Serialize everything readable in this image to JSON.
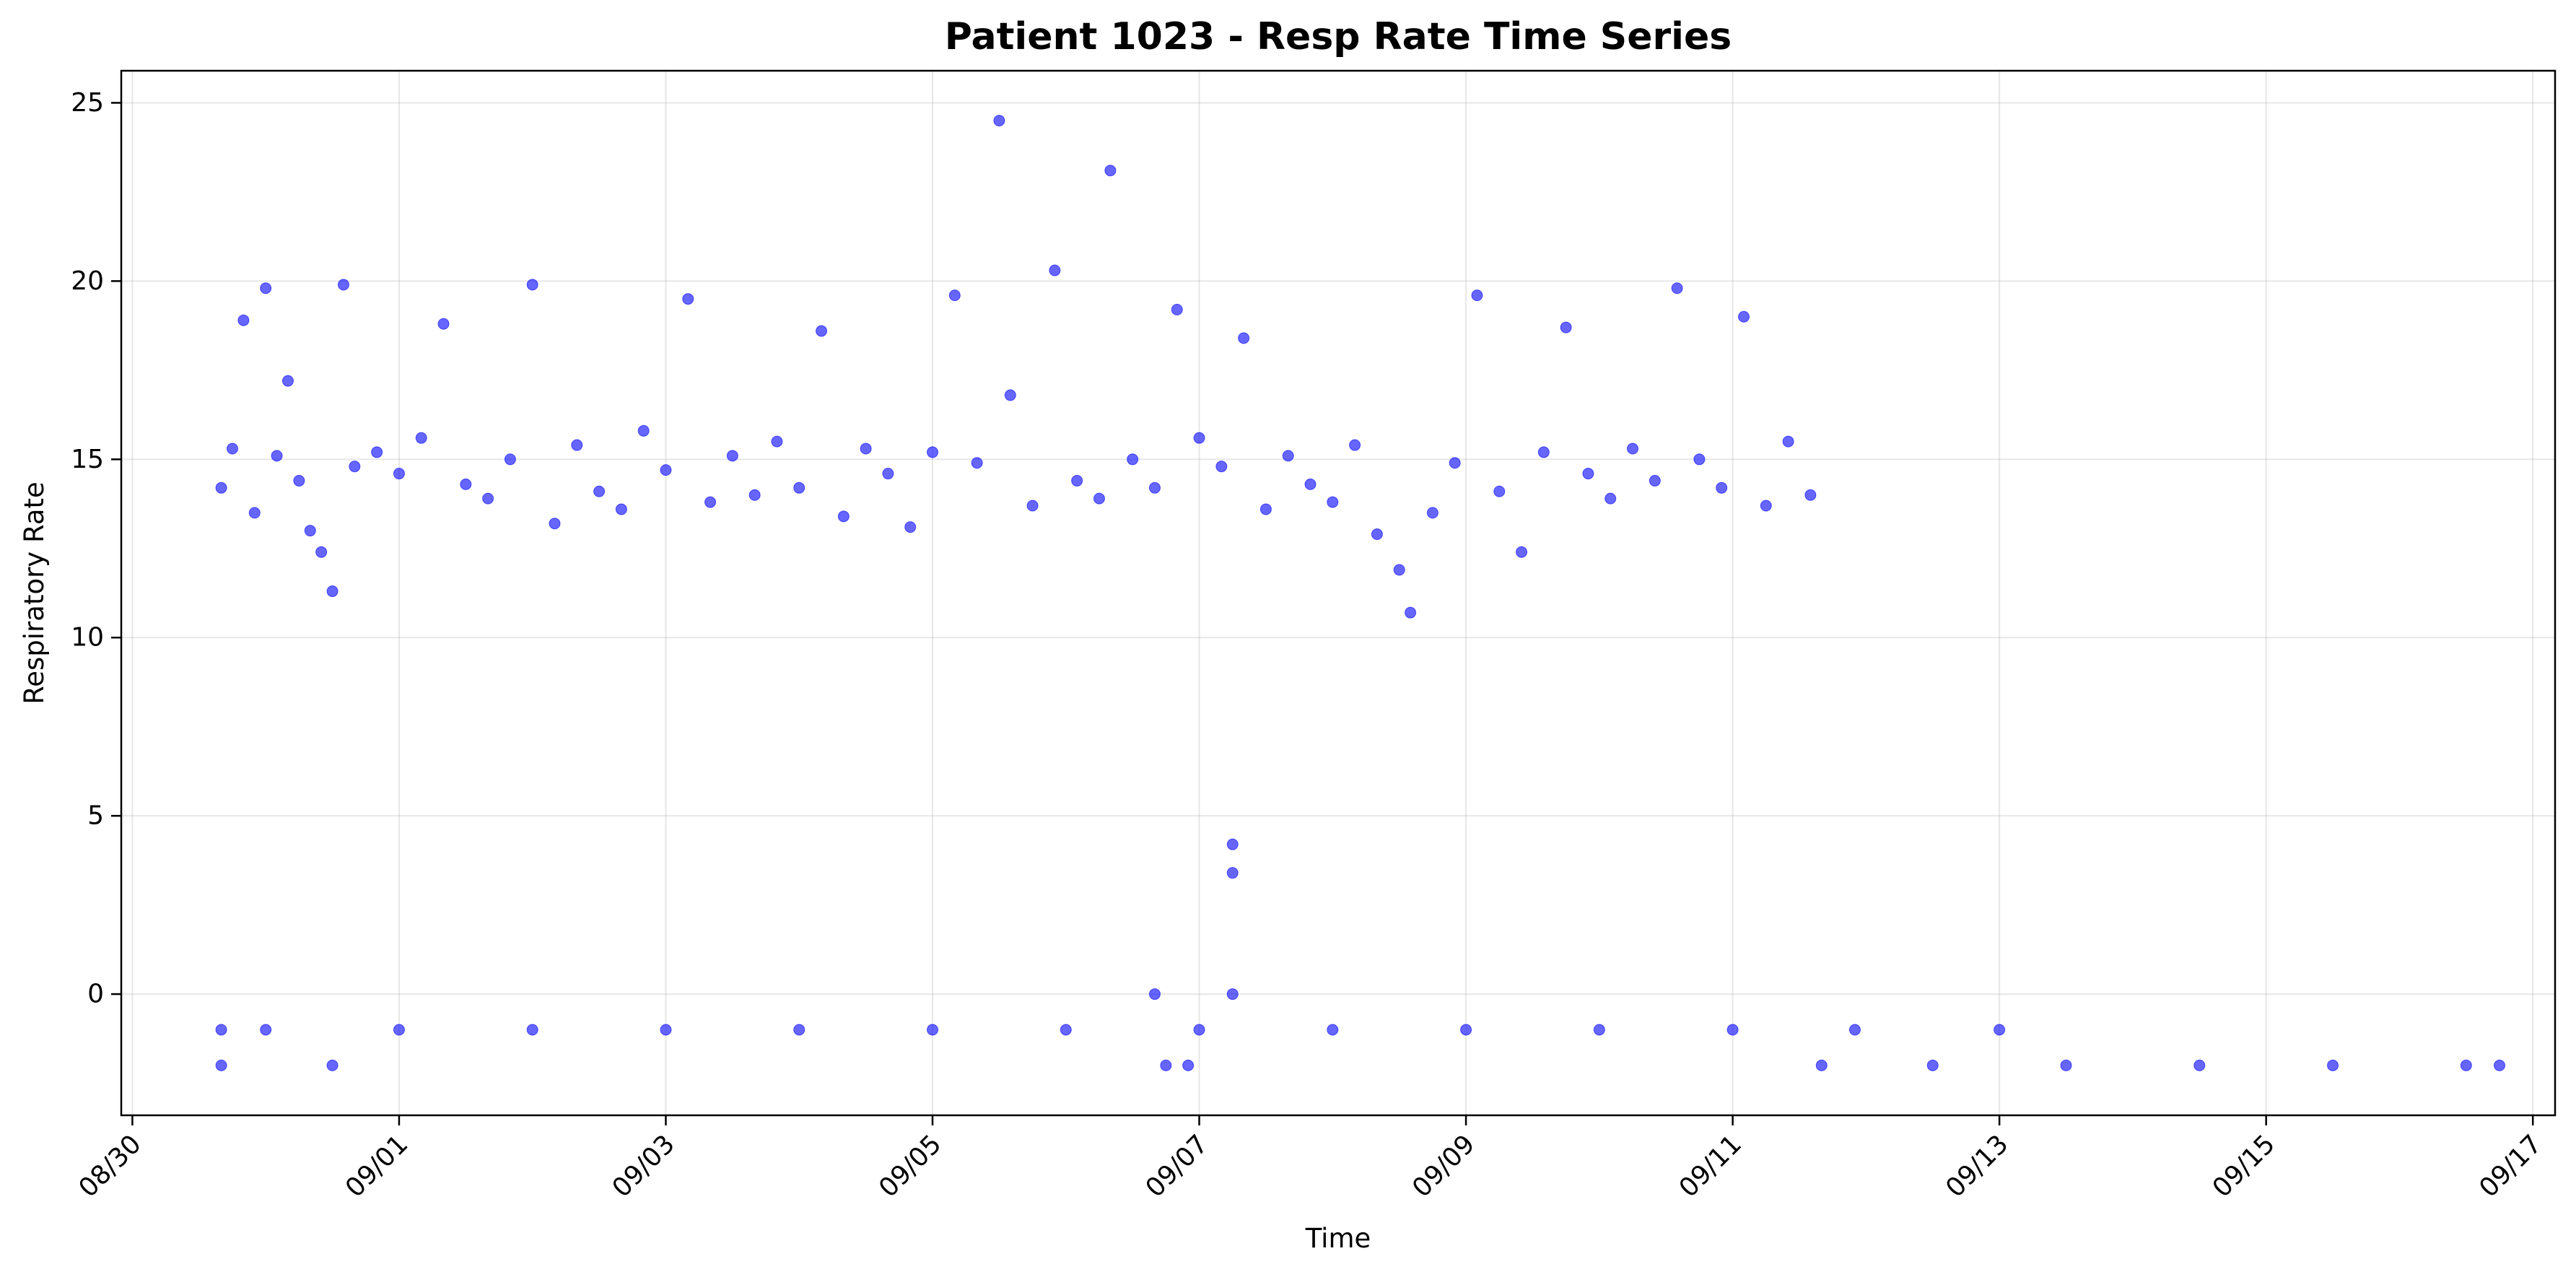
{
  "chart_data": {
    "type": "scatter",
    "title": "Patient 1023 - Resp Rate Time Series",
    "xlabel": "Time",
    "ylabel": "Respiratory Rate",
    "x_tick_labels": [
      "08/30",
      "09/01",
      "09/03",
      "09/05",
      "09/07",
      "09/09",
      "09/11",
      "09/13",
      "09/15",
      "09/17"
    ],
    "y_tick_labels": [
      "0",
      "5",
      "10",
      "15",
      "20",
      "25"
    ],
    "y_ticks": [
      0,
      5,
      10,
      15,
      20,
      25
    ],
    "xlim": [
      "2024-08-29T22:00",
      "2024-09-17T04:00"
    ],
    "ylim": [
      -3.4,
      25.9
    ],
    "grid": true,
    "marker_color": "#0000ff",
    "marker_alpha": 0.6,
    "series": [
      {
        "points": [
          [
            "2024-08-30T16:00",
            14.2
          ],
          [
            "2024-08-30T18:00",
            15.3
          ],
          [
            "2024-08-30T20:00",
            18.9
          ],
          [
            "2024-08-30T22:00",
            13.5
          ],
          [
            "2024-08-31T00:00",
            19.8
          ],
          [
            "2024-08-31T02:00",
            15.1
          ],
          [
            "2024-08-31T04:00",
            17.2
          ],
          [
            "2024-08-31T06:00",
            14.4
          ],
          [
            "2024-08-31T08:00",
            13.0
          ],
          [
            "2024-08-31T10:00",
            12.4
          ],
          [
            "2024-08-31T12:00",
            11.3
          ],
          [
            "2024-08-31T14:00",
            19.9
          ],
          [
            "2024-08-31T16:00",
            14.8
          ],
          [
            "2024-08-31T20:00",
            15.2
          ],
          [
            "2024-09-01T00:00",
            14.6
          ],
          [
            "2024-09-01T04:00",
            15.6
          ],
          [
            "2024-09-01T08:00",
            18.8
          ],
          [
            "2024-09-01T12:00",
            14.3
          ],
          [
            "2024-09-01T16:00",
            13.9
          ],
          [
            "2024-09-01T20:00",
            15.0
          ],
          [
            "2024-09-02T00:00",
            19.9
          ],
          [
            "2024-09-02T04:00",
            13.2
          ],
          [
            "2024-09-02T08:00",
            15.4
          ],
          [
            "2024-09-02T12:00",
            14.1
          ],
          [
            "2024-09-02T16:00",
            13.6
          ],
          [
            "2024-09-02T20:00",
            15.8
          ],
          [
            "2024-09-03T00:00",
            14.7
          ],
          [
            "2024-09-03T04:00",
            19.5
          ],
          [
            "2024-09-03T08:00",
            13.8
          ],
          [
            "2024-09-03T12:00",
            15.1
          ],
          [
            "2024-09-03T16:00",
            14.0
          ],
          [
            "2024-09-03T20:00",
            15.5
          ],
          [
            "2024-09-04T00:00",
            14.2
          ],
          [
            "2024-09-04T04:00",
            18.6
          ],
          [
            "2024-09-04T08:00",
            13.4
          ],
          [
            "2024-09-04T12:00",
            15.3
          ],
          [
            "2024-09-04T16:00",
            14.6
          ],
          [
            "2024-09-04T20:00",
            13.1
          ],
          [
            "2024-09-05T00:00",
            15.2
          ],
          [
            "2024-09-05T04:00",
            19.6
          ],
          [
            "2024-09-05T08:00",
            14.9
          ],
          [
            "2024-09-05T12:00",
            24.5
          ],
          [
            "2024-09-05T14:00",
            16.8
          ],
          [
            "2024-09-05T18:00",
            13.7
          ],
          [
            "2024-09-05T22:00",
            20.3
          ],
          [
            "2024-09-06T02:00",
            14.4
          ],
          [
            "2024-09-06T06:00",
            13.9
          ],
          [
            "2024-09-06T08:00",
            23.1
          ],
          [
            "2024-09-06T12:00",
            15.0
          ],
          [
            "2024-09-06T16:00",
            14.2
          ],
          [
            "2024-09-06T20:00",
            19.2
          ],
          [
            "2024-09-07T00:00",
            15.6
          ],
          [
            "2024-09-07T04:00",
            14.8
          ],
          [
            "2024-09-07T08:00",
            18.4
          ],
          [
            "2024-09-07T12:00",
            13.6
          ],
          [
            "2024-09-07T16:00",
            15.1
          ],
          [
            "2024-09-07T20:00",
            14.3
          ],
          [
            "2024-09-08T00:00",
            13.8
          ],
          [
            "2024-09-08T04:00",
            15.4
          ],
          [
            "2024-09-08T08:00",
            12.9
          ],
          [
            "2024-09-08T12:00",
            11.9
          ],
          [
            "2024-09-08T14:00",
            10.7
          ],
          [
            "2024-09-08T18:00",
            13.5
          ],
          [
            "2024-09-08T22:00",
            14.9
          ],
          [
            "2024-09-09T02:00",
            19.6
          ],
          [
            "2024-09-09T06:00",
            14.1
          ],
          [
            "2024-09-09T10:00",
            12.4
          ],
          [
            "2024-09-09T14:00",
            15.2
          ],
          [
            "2024-09-09T18:00",
            18.7
          ],
          [
            "2024-09-09T22:00",
            14.6
          ],
          [
            "2024-09-10T02:00",
            13.9
          ],
          [
            "2024-09-10T06:00",
            15.3
          ],
          [
            "2024-09-10T10:00",
            14.4
          ],
          [
            "2024-09-10T14:00",
            19.8
          ],
          [
            "2024-09-10T18:00",
            15.0
          ],
          [
            "2024-09-10T22:00",
            14.2
          ],
          [
            "2024-09-11T02:00",
            19.0
          ],
          [
            "2024-09-11T06:00",
            13.7
          ],
          [
            "2024-09-11T10:00",
            15.5
          ],
          [
            "2024-09-11T14:00",
            14.0
          ],
          [
            "2024-08-30T16:00",
            -1.0
          ],
          [
            "2024-08-31T00:00",
            -1.0
          ],
          [
            "2024-09-01T00:00",
            -1.0
          ],
          [
            "2024-09-02T00:00",
            -1.0
          ],
          [
            "2024-09-03T00:00",
            -1.0
          ],
          [
            "2024-09-04T00:00",
            -1.0
          ],
          [
            "2024-09-05T00:00",
            -1.0
          ],
          [
            "2024-09-06T00:00",
            -1.0
          ],
          [
            "2024-09-07T00:00",
            -1.0
          ],
          [
            "2024-09-08T00:00",
            -1.0
          ],
          [
            "2024-09-09T00:00",
            -1.0
          ],
          [
            "2024-09-10T00:00",
            -1.0
          ],
          [
            "2024-09-11T00:00",
            -1.0
          ],
          [
            "2024-09-11T22:00",
            -1.0
          ],
          [
            "2024-09-13T00:00",
            -1.0
          ],
          [
            "2024-08-30T16:00",
            -2.0
          ],
          [
            "2024-08-31T12:00",
            -2.0
          ],
          [
            "2024-09-06T18:00",
            -2.0
          ],
          [
            "2024-09-06T22:00",
            -2.0
          ],
          [
            "2024-09-11T16:00",
            -2.0
          ],
          [
            "2024-09-12T12:00",
            -2.0
          ],
          [
            "2024-09-13T12:00",
            -2.0
          ],
          [
            "2024-09-14T12:00",
            -2.0
          ],
          [
            "2024-09-15T12:00",
            -2.0
          ],
          [
            "2024-09-16T12:00",
            -2.0
          ],
          [
            "2024-09-16T18:00",
            -2.0
          ],
          [
            "2024-09-06T16:00",
            0.0
          ],
          [
            "2024-09-07T06:00",
            0.0
          ],
          [
            "2024-09-07T06:00",
            4.2
          ],
          [
            "2024-09-07T06:00",
            3.4
          ]
        ]
      }
    ]
  }
}
